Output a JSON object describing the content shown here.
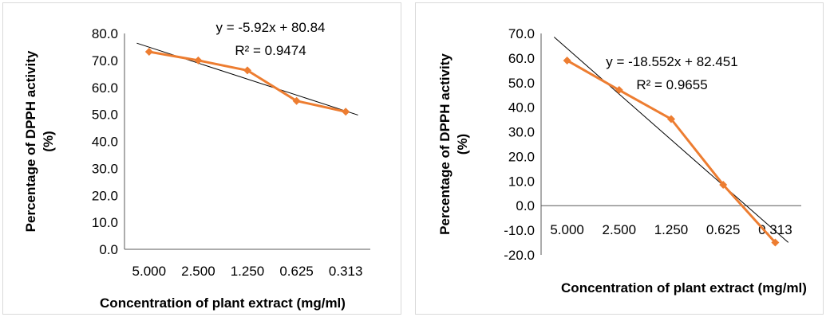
{
  "chart_data": [
    {
      "type": "line",
      "categories": [
        "5.000",
        "2.500",
        "1.250",
        "0.625",
        "0.313"
      ],
      "series": [
        {
          "values": [
            73.2,
            70.0,
            66.3,
            55.0,
            51.0
          ],
          "color": "#ed7d31"
        }
      ],
      "trendline": {
        "type": "linear",
        "slope": -5.92,
        "intercept": 80.84,
        "color": "#000000"
      },
      "equation": "y = -5.92x + 80.84",
      "r_squared": "R² = 0.9474",
      "xlabel": "Concentration of plant extract (mg/ml)",
      "ylabel": "Percentage of DPPH activity (%)",
      "ylim": [
        0,
        80
      ],
      "ytick_step": 10,
      "ytick_labels": [
        "0.0",
        "10.0",
        "20.0",
        "30.0",
        "40.0",
        "50.0",
        "60.0",
        "70.0",
        "80.0"
      ],
      "grid": false,
      "legend": "none"
    },
    {
      "type": "line",
      "categories": [
        "5.000",
        "2.500",
        "1.250",
        "0.625",
        "0.313"
      ],
      "series": [
        {
          "values": [
            59.0,
            47.0,
            35.2,
            8.5,
            -15.0
          ],
          "color": "#ed7d31"
        }
      ],
      "trendline": {
        "type": "linear",
        "slope": -18.552,
        "intercept": 82.451,
        "color": "#000000"
      },
      "equation": "y = -18.552x + 82.451",
      "r_squared": "R² = 0.9655",
      "xlabel": "Concentration of plant extract (mg/ml)",
      "ylabel": "Percentage of DPPH activity (%)",
      "ylim": [
        -20,
        70
      ],
      "ytick_step": 10,
      "ytick_labels": [
        "-20.0",
        "-10.0",
        "0.0",
        "10.0",
        "20.0",
        "30.0",
        "40.0",
        "50.0",
        "60.0",
        "70.0"
      ],
      "grid": false,
      "legend": "none"
    }
  ]
}
